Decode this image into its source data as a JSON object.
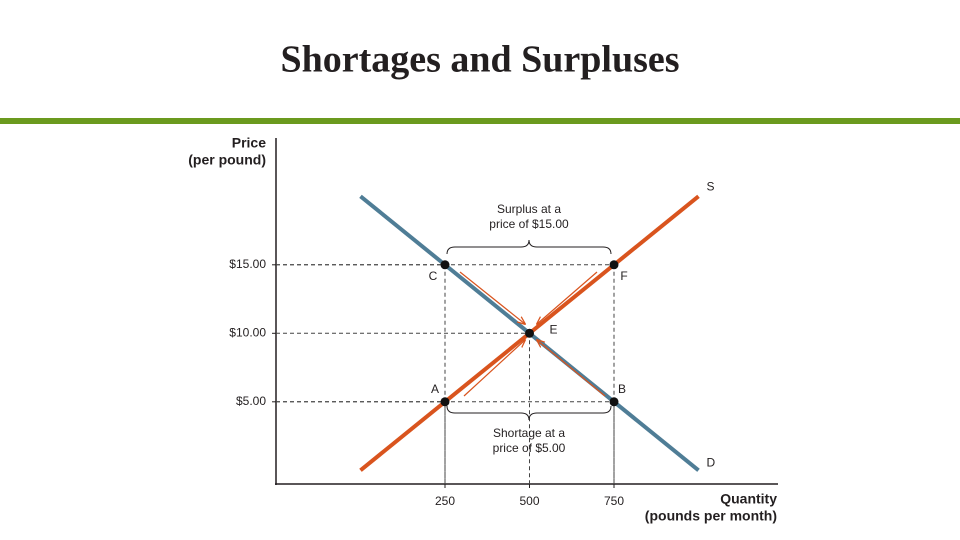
{
  "chart_data": {
    "type": "line",
    "title": "Shortages and Surpluses",
    "ylabel": [
      "Price",
      "(per pound)"
    ],
    "xlabel": [
      "Quantity",
      "(pounds per month)"
    ],
    "xlim": [
      -250,
      1250
    ],
    "ylim": [
      -1,
      24
    ],
    "xticks": [
      250,
      500,
      750
    ],
    "yticks": [
      {
        "value": 5,
        "label": "$5.00"
      },
      {
        "value": 10,
        "label": "$10.00"
      },
      {
        "value": 15,
        "label": "$15.00"
      }
    ],
    "series": [
      {
        "name": "S",
        "color": "#d9541e",
        "x": [
          0,
          1000
        ],
        "values": [
          0,
          20
        ]
      },
      {
        "name": "D",
        "color": "#4f7d96",
        "x": [
          0,
          1000
        ],
        "values": [
          20,
          0
        ]
      }
    ],
    "points": [
      {
        "label": "C",
        "x": 250,
        "y": 15
      },
      {
        "label": "F",
        "x": 750,
        "y": 15
      },
      {
        "label": "E",
        "x": 500,
        "y": 10
      },
      {
        "label": "A",
        "x": 250,
        "y": 5
      },
      {
        "label": "B",
        "x": 750,
        "y": 5
      }
    ],
    "annotations": [
      {
        "text": [
          "Surplus at a",
          "price of $15.00"
        ]
      },
      {
        "text": [
          "Shortage at a",
          "price of $5.00"
        ]
      }
    ]
  }
}
